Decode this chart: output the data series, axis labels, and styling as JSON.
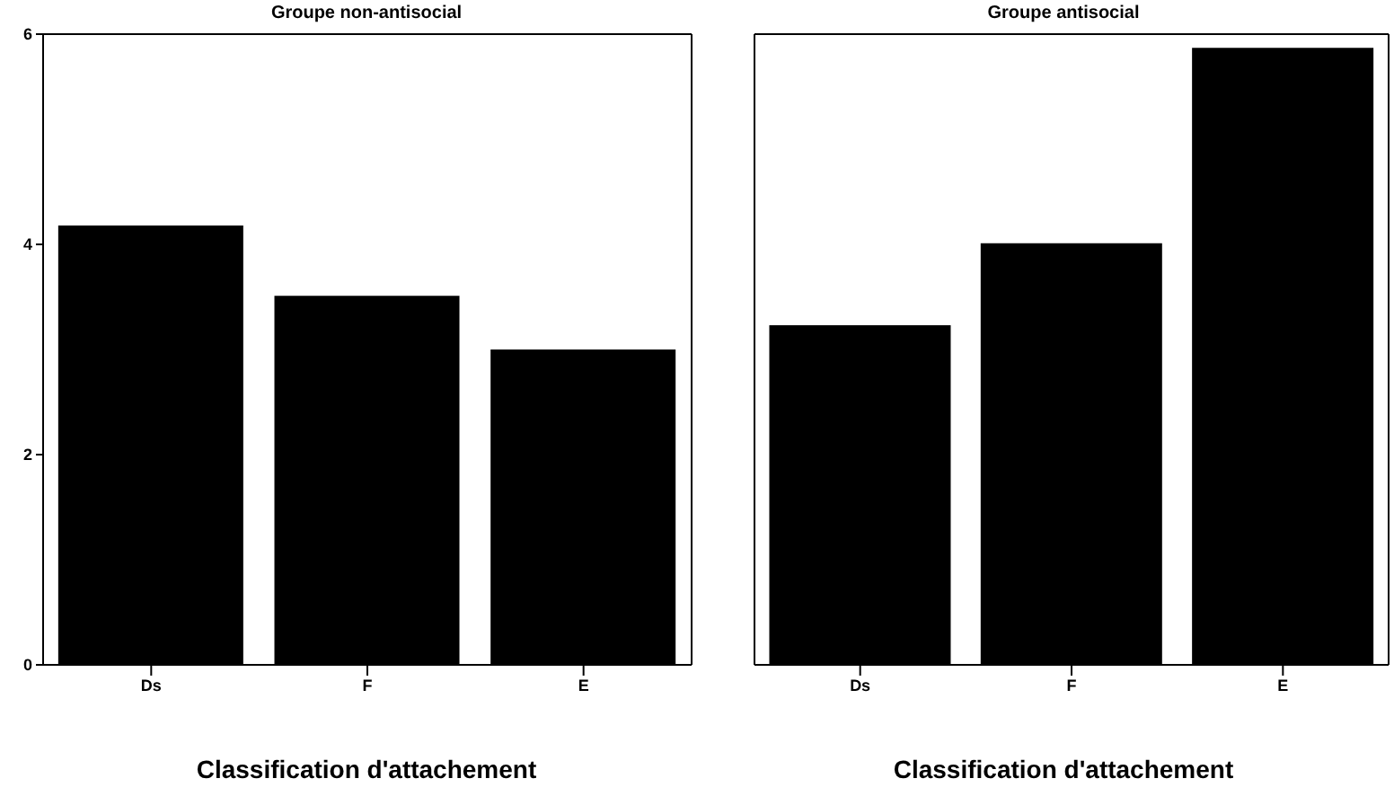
{
  "chart_data": [
    {
      "type": "bar",
      "title": "Groupe non-antisocial",
      "xlabel": "Classification d'attachement",
      "categories": [
        "Ds",
        "F",
        "E"
      ],
      "values": [
        4.18,
        3.51,
        3.0
      ],
      "color": "#000000",
      "ylim": [
        0,
        6
      ],
      "yticks": [
        0,
        2,
        4,
        6
      ],
      "grid": false,
      "legend": false
    },
    {
      "type": "bar",
      "title": "Groupe  antisocial",
      "xlabel": "Classification d'attachement",
      "categories": [
        "Ds",
        "F",
        "E"
      ],
      "values": [
        3.23,
        4.01,
        5.87
      ],
      "color": "#000000",
      "ylim": [
        0,
        6
      ],
      "yticks": [
        0,
        2,
        4,
        6
      ],
      "grid": false,
      "legend": false,
      "tick_labels": "x"
    }
  ]
}
